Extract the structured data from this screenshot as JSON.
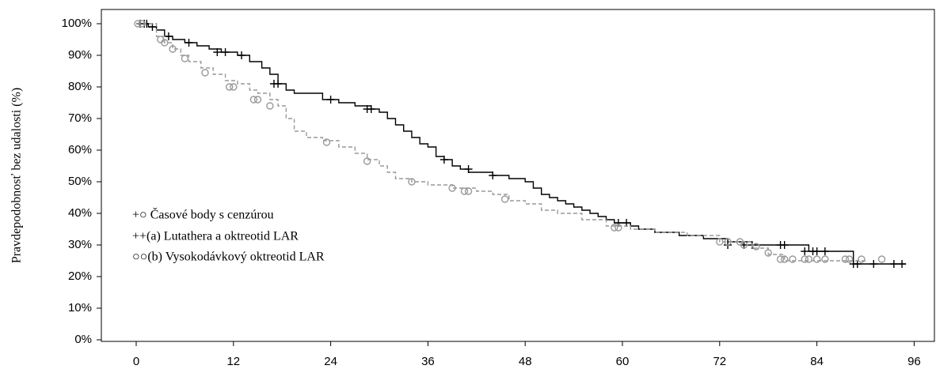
{
  "chart_data": {
    "type": "kaplan-meier",
    "ylabel": "Pravdepodobnosť bez udalosti (%)",
    "censor_note": "+○ Časové body s cenzúrou",
    "xlim": [
      -4.3,
      98.5
    ],
    "ylim": [
      -0.5,
      104.5
    ],
    "xticks": [
      0,
      12,
      24,
      36,
      48,
      60,
      72,
      84,
      96
    ],
    "yticks": [
      {
        "value": 0,
        "label": "0%"
      },
      {
        "value": 10,
        "label": "10%"
      },
      {
        "value": 20,
        "label": "20%"
      },
      {
        "value": 30,
        "label": "30%"
      },
      {
        "value": 40,
        "label": "40%"
      },
      {
        "value": 50,
        "label": "50%"
      },
      {
        "value": 60,
        "label": "60%"
      },
      {
        "value": 70,
        "label": "70%"
      },
      {
        "value": 80,
        "label": "80%"
      },
      {
        "value": 90,
        "label": "90%"
      },
      {
        "value": 100,
        "label": "100%"
      }
    ],
    "series": [
      {
        "name": "++(a) Lutathera a oktreotid LAR",
        "color": "#000000",
        "dashed": false,
        "marker": "plus",
        "x": [
          0,
          1.5,
          2.5,
          3.5,
          4.5,
          6,
          7.5,
          9,
          10.5,
          12.5,
          14,
          15.5,
          16.5,
          17.5,
          18.5,
          19.5,
          21.5,
          23,
          25,
          27,
          29,
          30,
          31,
          32,
          33,
          34,
          35,
          36,
          37,
          38,
          39,
          40,
          41,
          42,
          44,
          46,
          47,
          48,
          49,
          50,
          51,
          52,
          53,
          54,
          55,
          56,
          57,
          58,
          59,
          60,
          61,
          62,
          64,
          67,
          70,
          73,
          76,
          80,
          83,
          88,
          88.5,
          95
        ],
        "values": [
          100,
          99,
          98,
          96,
          95,
          94,
          93,
          92,
          91,
          90,
          88,
          86,
          84,
          81,
          79,
          78,
          78,
          76,
          75,
          74,
          73,
          72,
          70,
          68,
          66,
          64,
          62,
          61,
          58,
          57,
          55,
          54,
          53,
          53,
          52,
          51,
          51,
          50,
          48,
          46,
          45,
          44,
          43,
          42,
          41,
          40,
          39,
          38,
          37,
          37,
          36,
          35,
          34,
          33,
          32,
          31,
          30,
          30,
          28,
          28,
          24,
          24
        ],
        "censored_x": [
          0.5,
          1,
          1.3,
          2,
          4,
          6.5,
          10,
          11,
          13,
          17,
          17.5,
          24,
          28.5,
          29,
          38,
          41,
          44,
          59.5,
          60.5,
          73,
          75,
          76,
          79.5,
          80,
          82.5,
          83.5,
          84,
          85,
          88.5,
          89,
          91,
          93.5,
          94.5
        ],
        "censored_values": [
          100,
          100,
          100,
          99,
          96,
          94,
          91,
          91,
          90,
          81,
          81,
          76,
          73,
          73,
          57,
          54,
          52,
          37,
          37,
          30,
          30,
          30,
          30,
          30,
          28,
          28,
          28,
          28,
          24,
          24,
          24,
          24,
          24
        ]
      },
      {
        "name": "○○(b) Vysokodávkový oktreotid LAR",
        "color": "#999999",
        "dashed": true,
        "marker": "circle",
        "x": [
          0,
          2.5,
          3.5,
          4.5,
          5.5,
          6.5,
          8,
          9.5,
          11,
          12.5,
          14,
          15,
          16.5,
          17.5,
          18.5,
          19.5,
          21,
          23,
          25,
          27,
          28.5,
          30,
          31,
          32,
          34,
          36,
          39,
          42,
          44,
          46,
          48,
          50,
          52,
          55,
          58,
          61,
          64,
          68,
          72,
          76,
          78,
          80,
          83,
          88,
          90
        ],
        "values": [
          100,
          96,
          94,
          92,
          90,
          88,
          86,
          84,
          82,
          81,
          79,
          78,
          76,
          74,
          70,
          66,
          64,
          63,
          61,
          59,
          57,
          55,
          53,
          51,
          50,
          49,
          48,
          47,
          46,
          44,
          43,
          41,
          40,
          38,
          36,
          35,
          34,
          33,
          31,
          29,
          27,
          25,
          25,
          25,
          25
        ],
        "censored_x": [
          0.2,
          0.7,
          3,
          3.5,
          4.5,
          6,
          8.5,
          11.5,
          12,
          14.5,
          15,
          16.5,
          23.5,
          28.5,
          34,
          39,
          40.5,
          41,
          45.5,
          59,
          59.5,
          72,
          73,
          74.5,
          75,
          76.5,
          78,
          79.5,
          80,
          81,
          82.5,
          83,
          84,
          85,
          87.5,
          88,
          89.5,
          92
        ],
        "censored_values": [
          100,
          100,
          95,
          94,
          92,
          89,
          84.5,
          80,
          80,
          76,
          76,
          74,
          62.5,
          56.5,
          50,
          48,
          47,
          47,
          44.5,
          35.5,
          35.5,
          31,
          31,
          31,
          30,
          29.5,
          27.5,
          25.5,
          25.5,
          25.5,
          25.5,
          25.5,
          25.5,
          25.5,
          25.5,
          25.5,
          25.5,
          25.5
        ]
      }
    ]
  }
}
